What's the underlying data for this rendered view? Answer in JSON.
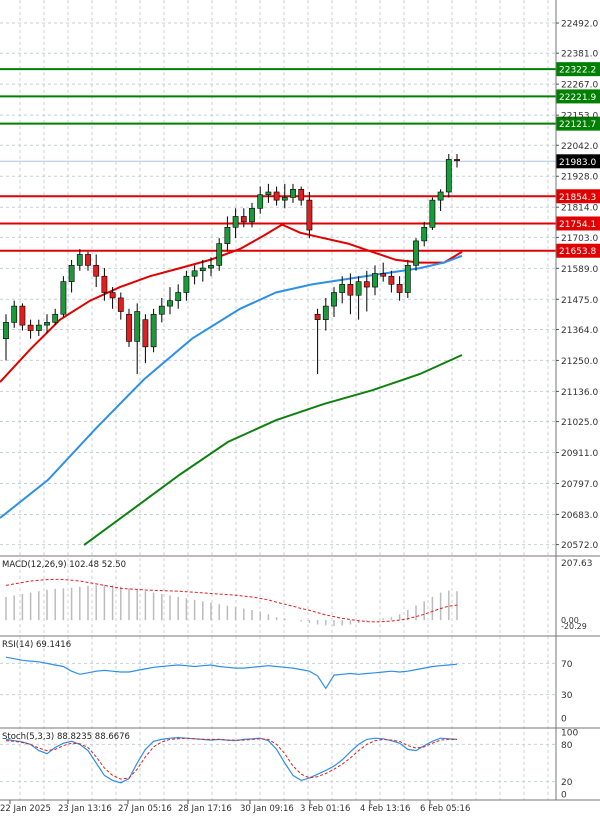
{
  "chart_data": {
    "type": "candlestick",
    "title": "",
    "x_labels": [
      "22 Jan 2025",
      "23 Jan 13:16",
      "27 Jan 05:16",
      "28 Jan 17:16",
      "30 Jan 09:16",
      "3 Feb 01:16",
      "4 Feb 13:16",
      "6 Feb 05:16"
    ],
    "price_axis": {
      "range": [
        20530,
        22540
      ],
      "ticks": [
        "22492.0",
        "22381.0",
        "22267.0",
        "22153.0",
        "22042.0",
        "21928.0",
        "21814.0",
        "21703.0",
        "21589.0",
        "21475.0",
        "21364.0",
        "21250.0",
        "21136.0",
        "21025.0",
        "20911.0",
        "20797.0",
        "20683.0",
        "20572.0"
      ],
      "current_price": 21983.0,
      "current_label": "21983.0"
    },
    "levels": [
      {
        "value": 22322.2,
        "label": "22322.2",
        "color": "#008000"
      },
      {
        "value": 22221.9,
        "label": "22221.9",
        "color": "#008000"
      },
      {
        "value": 22121.7,
        "label": "22121.7",
        "color": "#008000"
      },
      {
        "value": 21854.3,
        "label": "21854.3",
        "color": "#e00000"
      },
      {
        "value": 21754.1,
        "label": "21754.1",
        "color": "#e00000"
      },
      {
        "value": 21653.8,
        "label": "21653.8",
        "color": "#e00000"
      }
    ],
    "candles": [
      [
        21330,
        21420,
        21250,
        21390
      ],
      [
        21390,
        21470,
        21370,
        21450
      ],
      [
        21450,
        21460,
        21360,
        21380
      ],
      [
        21380,
        21400,
        21330,
        21360
      ],
      [
        21360,
        21400,
        21340,
        21380
      ],
      [
        21380,
        21420,
        21350,
        21390
      ],
      [
        21390,
        21440,
        21380,
        21420
      ],
      [
        21420,
        21560,
        21410,
        21540
      ],
      [
        21540,
        21620,
        21500,
        21600
      ],
      [
        21600,
        21660,
        21580,
        21640
      ],
      [
        21640,
        21650,
        21580,
        21600
      ],
      [
        21600,
        21640,
        21520,
        21560
      ],
      [
        21560,
        21590,
        21470,
        21500
      ],
      [
        21500,
        21520,
        21440,
        21480
      ],
      [
        21480,
        21500,
        21400,
        21430
      ],
      [
        21420,
        21440,
        21300,
        21320
      ],
      [
        21320,
        21460,
        21200,
        21430
      ],
      [
        21400,
        21420,
        21240,
        21300
      ],
      [
        21300,
        21440,
        21280,
        21420
      ],
      [
        21420,
        21480,
        21390,
        21450
      ],
      [
        21450,
        21520,
        21420,
        21470
      ],
      [
        21470,
        21530,
        21440,
        21500
      ],
      [
        21500,
        21580,
        21470,
        21560
      ],
      [
        21560,
        21600,
        21530,
        21580
      ],
      [
        21580,
        21620,
        21540,
        21590
      ],
      [
        21590,
        21630,
        21560,
        21600
      ],
      [
        21600,
        21700,
        21580,
        21680
      ],
      [
        21680,
        21780,
        21650,
        21740
      ],
      [
        21740,
        21810,
        21700,
        21780
      ],
      [
        21780,
        21810,
        21740,
        21760
      ],
      [
        21760,
        21830,
        21740,
        21810
      ],
      [
        21810,
        21890,
        21790,
        21860
      ],
      [
        21860,
        21900,
        21830,
        21870
      ],
      [
        21870,
        21890,
        21820,
        21840
      ],
      [
        21840,
        21900,
        21810,
        21850
      ],
      [
        21850,
        21900,
        21830,
        21880
      ],
      [
        21880,
        21890,
        21820,
        21840
      ],
      [
        21840,
        21870,
        21700,
        21730
      ],
      [
        21420,
        21440,
        21200,
        21400
      ],
      [
        21400,
        21480,
        21360,
        21450
      ],
      [
        21450,
        21520,
        21410,
        21500
      ],
      [
        21500,
        21560,
        21460,
        21530
      ],
      [
        21530,
        21570,
        21420,
        21490
      ],
      [
        21490,
        21560,
        21400,
        21540
      ],
      [
        21540,
        21580,
        21430,
        21520
      ],
      [
        21520,
        21600,
        21490,
        21570
      ],
      [
        21570,
        21610,
        21540,
        21560
      ],
      [
        21560,
        21580,
        21500,
        21530
      ],
      [
        21530,
        21560,
        21470,
        21500
      ],
      [
        21500,
        21620,
        21480,
        21600
      ],
      [
        21600,
        21700,
        21580,
        21690
      ],
      [
        21690,
        21760,
        21670,
        21740
      ],
      [
        21740,
        21850,
        21730,
        21840
      ],
      [
        21840,
        21880,
        21800,
        21870
      ],
      [
        21870,
        22010,
        21850,
        21990
      ],
      [
        21990,
        22010,
        21960,
        21985
      ]
    ],
    "moving_averages": [
      {
        "color": "#e00000",
        "points": [
          [
            0,
            21170
          ],
          [
            0.05,
            21290
          ],
          [
            0.1,
            21400
          ],
          [
            0.15,
            21470
          ],
          [
            0.2,
            21520
          ],
          [
            0.25,
            21560
          ],
          [
            0.3,
            21590
          ],
          [
            0.35,
            21620
          ],
          [
            0.4,
            21660
          ],
          [
            0.44,
            21710
          ],
          [
            0.47,
            21750
          ],
          [
            0.5,
            21720
          ],
          [
            0.54,
            21700
          ],
          [
            0.58,
            21680
          ],
          [
            0.62,
            21650
          ],
          [
            0.66,
            21620
          ],
          [
            0.7,
            21610
          ],
          [
            0.74,
            21610
          ],
          [
            0.77,
            21650
          ]
        ]
      },
      {
        "color": "#2e8fe8",
        "points": [
          [
            0,
            20670
          ],
          [
            0.08,
            20810
          ],
          [
            0.16,
            21000
          ],
          [
            0.24,
            21180
          ],
          [
            0.32,
            21330
          ],
          [
            0.4,
            21440
          ],
          [
            0.46,
            21500
          ],
          [
            0.52,
            21530
          ],
          [
            0.58,
            21550
          ],
          [
            0.64,
            21570
          ],
          [
            0.7,
            21590
          ],
          [
            0.74,
            21610
          ],
          [
            0.77,
            21635
          ]
        ]
      },
      {
        "color": "#108010",
        "points": [
          [
            0.14,
            20570
          ],
          [
            0.22,
            20700
          ],
          [
            0.3,
            20830
          ],
          [
            0.38,
            20950
          ],
          [
            0.46,
            21030
          ],
          [
            0.54,
            21090
          ],
          [
            0.62,
            21140
          ],
          [
            0.7,
            21200
          ],
          [
            0.74,
            21240
          ],
          [
            0.77,
            21270
          ]
        ]
      }
    ],
    "macd": {
      "label": "MACD(12,26,9) 102.48 52.50",
      "range": [
        -20.29,
        207.63
      ],
      "ticks": [
        "207.63",
        "0.00",
        "-20.29"
      ],
      "histogram": [
        80,
        85,
        90,
        95,
        100,
        105,
        108,
        110,
        112,
        115,
        118,
        120,
        122,
        120,
        115,
        110,
        105,
        100,
        95,
        90,
        85,
        80,
        75,
        70,
        65,
        60,
        55,
        50,
        45,
        40,
        35,
        30,
        20,
        10,
        5,
        0,
        -5,
        -10,
        -15,
        -18,
        -20,
        -18,
        -15,
        -10,
        -5,
        0,
        5,
        10,
        20,
        35,
        50,
        65,
        80,
        95,
        102,
        100
      ],
      "signal": [
        120,
        125,
        130,
        135,
        138,
        140,
        141,
        140,
        138,
        135,
        130,
        125,
        120,
        115,
        110,
        108,
        106,
        104,
        103,
        102,
        101,
        100,
        98,
        96,
        94,
        92,
        90,
        88,
        86,
        83,
        80,
        75,
        70,
        62,
        55,
        48,
        40,
        34,
        26,
        18,
        12,
        6,
        2,
        -2,
        -5,
        -6,
        -5,
        -3,
        0,
        5,
        12,
        20,
        30,
        40,
        48,
        52
      ]
    },
    "rsi": {
      "label": "RSI(14) 69.1416",
      "range": [
        0,
        100
      ],
      "ticks": [
        "70",
        "30",
        "0"
      ],
      "values": [
        78,
        76,
        74,
        73,
        72,
        70,
        68,
        66,
        60,
        56,
        58,
        60,
        61,
        60,
        59,
        59,
        61,
        63,
        65,
        66,
        67,
        68,
        67,
        66,
        67,
        68,
        66,
        65,
        64,
        64,
        65,
        66,
        67,
        66,
        65,
        64,
        62,
        60,
        54,
        38,
        55,
        56,
        57,
        56,
        57,
        58,
        59,
        60,
        59,
        60,
        62,
        64,
        66,
        67,
        68,
        69
      ]
    },
    "stoch": {
      "label": "Stoch(5,3,3) 88.8235 88.6676",
      "range": [
        0,
        100
      ],
      "ticks": [
        "100",
        "80",
        "20",
        "0"
      ],
      "k": [
        88,
        86,
        84,
        80,
        70,
        65,
        75,
        82,
        85,
        80,
        70,
        50,
        30,
        22,
        18,
        25,
        50,
        72,
        85,
        88,
        90,
        91,
        90,
        89,
        88,
        87,
        88,
        87,
        86,
        88,
        89,
        90,
        86,
        72,
        50,
        30,
        22,
        26,
        32,
        38,
        45,
        55,
        68,
        80,
        88,
        90,
        89,
        86,
        82,
        72,
        70,
        78,
        85,
        90,
        89,
        88
      ],
      "d": [
        86,
        85,
        83,
        80,
        74,
        70,
        72,
        78,
        82,
        81,
        75,
        60,
        42,
        30,
        24,
        26,
        40,
        60,
        76,
        84,
        88,
        89,
        90,
        89,
        88,
        88,
        88,
        87,
        87,
        87,
        88,
        89,
        88,
        80,
        65,
        45,
        32,
        26,
        28,
        33,
        40,
        48,
        58,
        70,
        80,
        86,
        88,
        87,
        85,
        78,
        74,
        76,
        82,
        87,
        88,
        88
      ]
    }
  }
}
